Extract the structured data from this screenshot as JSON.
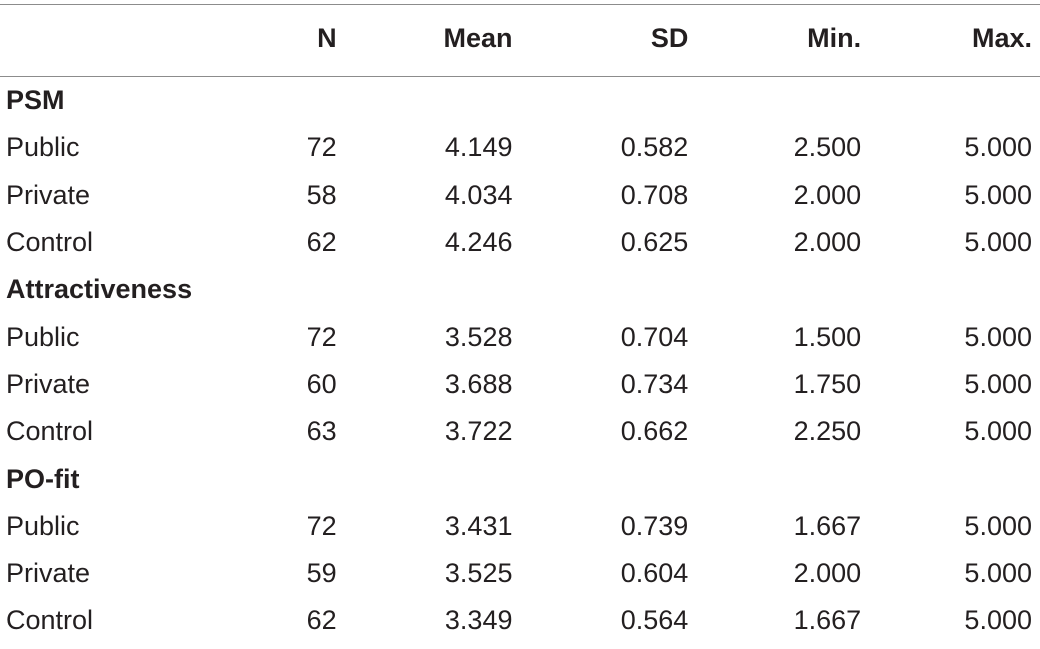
{
  "table": {
    "columns": [
      "",
      "N",
      "Mean",
      "SD",
      "Min.",
      "Max."
    ],
    "groups": [
      {
        "title": "PSM",
        "rows": [
          {
            "label": "Public",
            "n": "72",
            "mean": "4.149",
            "sd": "0.582",
            "min": "2.500",
            "max": "5.000"
          },
          {
            "label": "Private",
            "n": "58",
            "mean": "4.034",
            "sd": "0.708",
            "min": "2.000",
            "max": "5.000"
          },
          {
            "label": "Control",
            "n": "62",
            "mean": "4.246",
            "sd": "0.625",
            "min": "2.000",
            "max": "5.000"
          }
        ]
      },
      {
        "title": "Attractiveness",
        "rows": [
          {
            "label": "Public",
            "n": "72",
            "mean": "3.528",
            "sd": "0.704",
            "min": "1.500",
            "max": "5.000"
          },
          {
            "label": "Private",
            "n": "60",
            "mean": "3.688",
            "sd": "0.734",
            "min": "1.750",
            "max": "5.000"
          },
          {
            "label": "Control",
            "n": "63",
            "mean": "3.722",
            "sd": "0.662",
            "min": "2.250",
            "max": "5.000"
          }
        ]
      },
      {
        "title": "PO-fit",
        "rows": [
          {
            "label": "Public",
            "n": "72",
            "mean": "3.431",
            "sd": "0.739",
            "min": "1.667",
            "max": "5.000"
          },
          {
            "label": "Private",
            "n": "59",
            "mean": "3.525",
            "sd": "0.604",
            "min": "2.000",
            "max": "5.000"
          },
          {
            "label": "Control",
            "n": "62",
            "mean": "3.349",
            "sd": "0.564",
            "min": "1.667",
            "max": "5.000"
          }
        ]
      }
    ]
  }
}
